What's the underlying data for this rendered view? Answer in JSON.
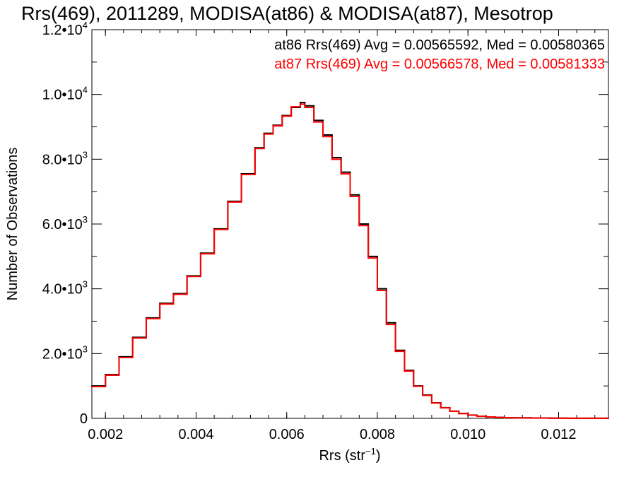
{
  "chart_data": {
    "type": "line",
    "title": "Rrs(469), 2011289, MODISA(at86) & MODISA(at87), Mesotrop",
    "xlabel_main": "Rrs (str",
    "xlabel_exp": "−1",
    "xlabel_close": ")",
    "ylabel": "Number of Observations",
    "xlim": [
      0.0017,
      0.0131
    ],
    "ylim": [
      0,
      12000
    ],
    "x_ticks": [
      {
        "value": 0.002,
        "label": "0.002"
      },
      {
        "value": 0.004,
        "label": "0.004"
      },
      {
        "value": 0.006,
        "label": "0.006"
      },
      {
        "value": 0.008,
        "label": "0.008"
      },
      {
        "value": 0.01,
        "label": "0.010"
      },
      {
        "value": 0.012,
        "label": "0.012"
      }
    ],
    "y_ticks": [
      {
        "value": 0,
        "mantissa": "0",
        "exp": ""
      },
      {
        "value": 2000,
        "mantissa": "2.0•10",
        "exp": "3"
      },
      {
        "value": 4000,
        "mantissa": "4.0•10",
        "exp": "3"
      },
      {
        "value": 6000,
        "mantissa": "6.0•10",
        "exp": "3"
      },
      {
        "value": 8000,
        "mantissa": "8.0•10",
        "exp": "3"
      },
      {
        "value": 10000,
        "mantissa": "1.0•10",
        "exp": "4"
      },
      {
        "value": 12000,
        "mantissa": "1.2•10",
        "exp": "4"
      }
    ],
    "annotations": [
      {
        "text": "at86 Rrs(469) Avg = 0.00565592, Med = 0.00580365",
        "color": "#000000"
      },
      {
        "text": "at87 Rrs(469) Avg = 0.00566578, Med = 0.00581333",
        "color": "#ff0000"
      }
    ],
    "series": [
      {
        "color": "#000000",
        "x": [
          0.0017,
          0.002,
          0.0023,
          0.0026,
          0.0029,
          0.0032,
          0.0035,
          0.0038,
          0.0041,
          0.0044,
          0.0047,
          0.005,
          0.0053,
          0.0055,
          0.0057,
          0.0059,
          0.0061,
          0.0063,
          0.0064,
          0.0066,
          0.0068,
          0.007,
          0.0072,
          0.0074,
          0.0076,
          0.0078,
          0.008,
          0.0082,
          0.0084,
          0.0086,
          0.0088,
          0.009,
          0.0092,
          0.0094,
          0.0096,
          0.0098,
          0.01,
          0.0102,
          0.0104,
          0.0106,
          0.0108,
          0.011,
          0.0114,
          0.0118,
          0.0122,
          0.0126,
          0.0131
        ],
        "values": [
          1000,
          1350,
          1900,
          2500,
          3100,
          3550,
          3850,
          4400,
          5100,
          5850,
          6700,
          7550,
          8350,
          8800,
          9050,
          9350,
          9600,
          9750,
          9650,
          9200,
          8750,
          8050,
          7600,
          6900,
          6000,
          5000,
          4000,
          2950,
          2100,
          1480,
          1000,
          720,
          480,
          330,
          220,
          150,
          100,
          65,
          45,
          30,
          20,
          15,
          10,
          6,
          4,
          2,
          0
        ]
      },
      {
        "color": "#ff0000",
        "x": [
          0.0017,
          0.002,
          0.0023,
          0.0026,
          0.0029,
          0.0032,
          0.0035,
          0.0038,
          0.0041,
          0.0044,
          0.0047,
          0.005,
          0.0053,
          0.0055,
          0.0057,
          0.0059,
          0.0061,
          0.0063,
          0.0064,
          0.0066,
          0.0068,
          0.007,
          0.0072,
          0.0074,
          0.0076,
          0.0078,
          0.008,
          0.0082,
          0.0084,
          0.0086,
          0.0088,
          0.009,
          0.0092,
          0.0094,
          0.0096,
          0.0098,
          0.01,
          0.0102,
          0.0104,
          0.0106,
          0.0108,
          0.011,
          0.0114,
          0.0118,
          0.0122,
          0.0126,
          0.0131
        ],
        "values": [
          980,
          1330,
          1880,
          2480,
          3080,
          3530,
          3830,
          4380,
          5080,
          5830,
          6680,
          7530,
          8330,
          8780,
          9030,
          9330,
          9620,
          9700,
          9600,
          9150,
          8700,
          8000,
          7550,
          6850,
          5950,
          4950,
          3950,
          2900,
          2070,
          1460,
          990,
          710,
          475,
          325,
          218,
          148,
          98,
          64,
          44,
          29,
          19,
          14,
          9,
          5,
          3,
          2,
          0
        ]
      }
    ]
  }
}
